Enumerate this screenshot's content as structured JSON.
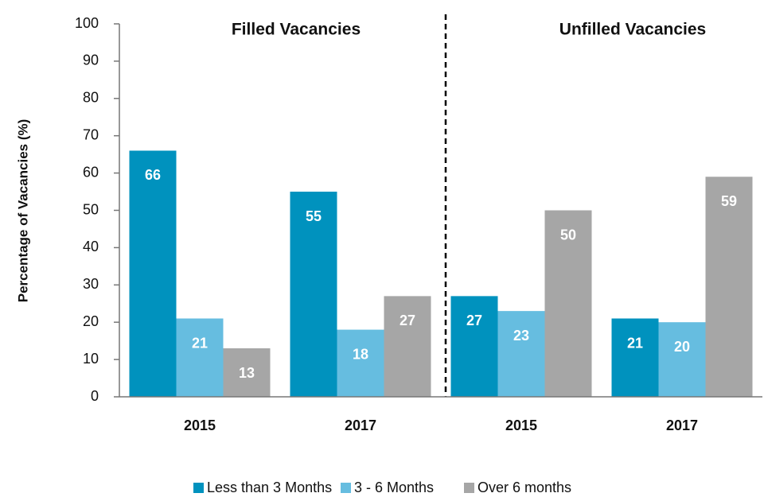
{
  "chart_data": {
    "type": "bar",
    "y_label": "Percentage of Vacancies (%)",
    "annotations": [
      "Filled Vacancies",
      "Unfilled Vacancies"
    ],
    "categories": [
      "2015",
      "2017",
      "2015",
      "2017"
    ],
    "series": [
      {
        "name": "Less than 3 Months",
        "color": "#0092be",
        "values": [
          66,
          55,
          27,
          21
        ]
      },
      {
        "name": "3 - 6 Months",
        "color": "#66bde0",
        "values": [
          21,
          18,
          23,
          20
        ]
      },
      {
        "name": "Over 6 months",
        "color": "#a6a6a6",
        "values": [
          13,
          27,
          50,
          59
        ]
      }
    ],
    "ylim": [
      0,
      100
    ],
    "yticks": [
      0,
      10,
      20,
      30,
      40,
      50,
      60,
      70,
      80,
      90,
      100
    ],
    "grid": false,
    "legend": "bottom"
  }
}
